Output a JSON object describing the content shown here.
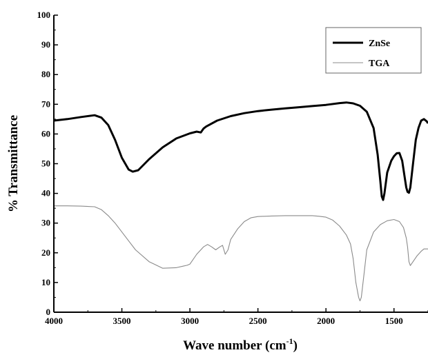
{
  "chart_data": {
    "type": "line",
    "xlabel_main": "Wave number (cm",
    "xlabel_sup": "-1",
    "xlabel_close": ")",
    "ylabel": "% Transmittance",
    "xlim": [
      4000,
      1250
    ],
    "ylim": [
      0,
      100
    ],
    "x_reversed": true,
    "x_ticks": [
      4000,
      3500,
      3000,
      2500,
      2000,
      1500
    ],
    "y_ticks": [
      0,
      10,
      20,
      30,
      40,
      50,
      60,
      70,
      80,
      90,
      100
    ],
    "legend_position": "top-right",
    "series": [
      {
        "name": "ZnSe",
        "color": "#000000",
        "x": [
          4000,
          3900,
          3800,
          3700,
          3650,
          3600,
          3550,
          3500,
          3450,
          3420,
          3380,
          3300,
          3200,
          3100,
          3000,
          2950,
          2920,
          2900,
          2880,
          2800,
          2700,
          2600,
          2500,
          2400,
          2300,
          2200,
          2100,
          2000,
          1900,
          1850,
          1800,
          1750,
          1700,
          1650,
          1620,
          1600,
          1590,
          1580,
          1570,
          1550,
          1520,
          1500,
          1480,
          1460,
          1440,
          1420,
          1410,
          1400,
          1390,
          1380,
          1360,
          1340,
          1320,
          1300,
          1280,
          1260,
          1250
        ],
        "y": [
          64.5,
          65,
          65.7,
          66.3,
          65.5,
          63,
          58,
          52,
          48,
          47.3,
          47.8,
          51.5,
          55.5,
          58.5,
          60.2,
          60.8,
          60.5,
          61.8,
          62.5,
          64.5,
          66,
          67,
          67.7,
          68.2,
          68.6,
          69,
          69.4,
          69.8,
          70.4,
          70.6,
          70.3,
          69.5,
          67.5,
          62,
          53,
          44,
          39,
          37.8,
          40,
          47,
          51,
          52.5,
          53.5,
          53.6,
          51,
          45,
          42,
          40.5,
          40.2,
          42,
          50,
          58,
          62,
          64.5,
          65,
          64.3,
          63.6
        ]
      },
      {
        "name": "TGA",
        "color": "#8a8a8a",
        "x": [
          4000,
          3900,
          3800,
          3700,
          3650,
          3600,
          3550,
          3500,
          3450,
          3400,
          3300,
          3200,
          3100,
          3050,
          3020,
          3000,
          2950,
          2900,
          2870,
          2840,
          2810,
          2780,
          2760,
          2740,
          2720,
          2700,
          2650,
          2600,
          2550,
          2500,
          2400,
          2300,
          2200,
          2100,
          2050,
          2000,
          1950,
          1900,
          1850,
          1820,
          1800,
          1780,
          1760,
          1750,
          1740,
          1720,
          1700,
          1650,
          1600,
          1550,
          1500,
          1460,
          1430,
          1410,
          1400,
          1390,
          1380,
          1360,
          1330,
          1300,
          1280,
          1260,
          1250
        ],
        "y": [
          35.8,
          35.8,
          35.7,
          35.5,
          34.5,
          32.5,
          30,
          27,
          24,
          21,
          17,
          14.8,
          15,
          15.5,
          15.8,
          16.2,
          19.5,
          22,
          22.8,
          22,
          21,
          22,
          22.5,
          19.5,
          21,
          24.5,
          28,
          30.5,
          31.8,
          32.2,
          32.4,
          32.5,
          32.5,
          32.5,
          32.3,
          32,
          31,
          29,
          26,
          23,
          18,
          10,
          5,
          3.8,
          5,
          13,
          21,
          27,
          29.5,
          30.8,
          31.2,
          30.5,
          28.5,
          25,
          22,
          17,
          15.7,
          17,
          19,
          20.5,
          21.3,
          21.3,
          21.3
        ]
      }
    ]
  }
}
